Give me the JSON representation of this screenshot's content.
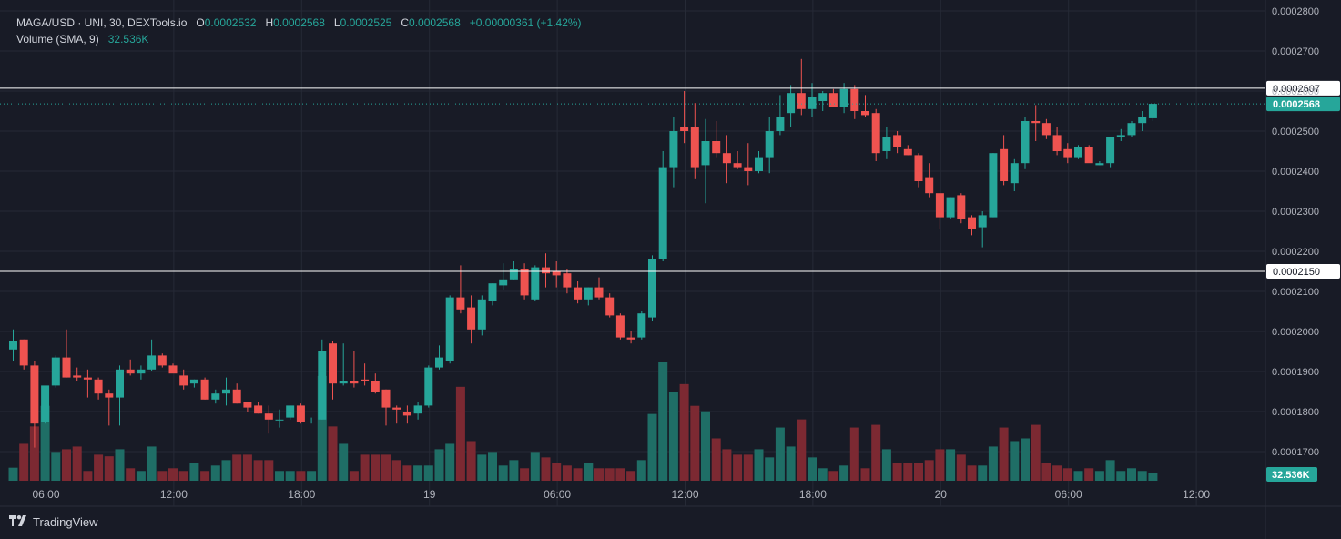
{
  "legend": {
    "symbol": "MAGA/USD · UNI, 30, DEXTools.io",
    "o_label": "O",
    "o_value": "0.0002532",
    "h_label": "H",
    "h_value": "0.0002568",
    "l_label": "L",
    "l_value": "0.0002525",
    "c_label": "C",
    "c_value": "0.0002568",
    "change": "+0.00000361 (+1.42%)",
    "volume_label": "Volume (SMA, 9)",
    "volume_value": "32.536K"
  },
  "footer": {
    "brand": "TradingView",
    "logo_icon": "tradingview-logo-icon"
  },
  "colors": {
    "background": "#181b26",
    "grid": "#262a36",
    "up": "#26a69a",
    "down": "#ef5350",
    "up_volume": "#1f6e66",
    "down_volume": "#7c2932",
    "text": "#b2b5be",
    "line": "#ffffff"
  },
  "chart_data": {
    "type": "candlestick",
    "interval": "30",
    "ylim": [
      0.0001645,
      0.00028
    ],
    "y_ticks": [
      "0.0002800",
      "0.0002700",
      "0.0002600",
      "0.0002500",
      "0.0002400",
      "0.0002300",
      "0.0002200",
      "0.0002100",
      "0.0002000",
      "0.0001900",
      "0.0001800",
      "0.0001700"
    ],
    "y_tick_values": [
      0.00028,
      0.00027,
      0.00026,
      0.00025,
      0.00024,
      0.00023,
      0.00022,
      0.00021,
      0.0002,
      0.00019,
      0.00018,
      0.00017
    ],
    "x_ticks": [
      {
        "label": "06:00",
        "bar": 2
      },
      {
        "label": "12:00",
        "bar": 14
      },
      {
        "label": "18:00",
        "bar": 26
      },
      {
        "label": "19",
        "bar": 38
      },
      {
        "label": "06:00",
        "bar": 50
      },
      {
        "label": "12:00",
        "bar": 62
      },
      {
        "label": "18:00",
        "bar": 74
      },
      {
        "label": "20",
        "bar": 86
      },
      {
        "label": "06:00",
        "bar": 98
      },
      {
        "label": "12:00",
        "bar": 110
      }
    ],
    "horizontal_lines": [
      {
        "value": 0.0002607,
        "label": "0.0002607"
      },
      {
        "value": 0.000215,
        "label": "0.0002150"
      }
    ],
    "last_price": {
      "value": 0.0002568,
      "label": "0.0002568"
    },
    "volume_label": "32.536K",
    "volume_max_k": 218,
    "candles": [
      {
        "o": 0.0001955,
        "h": 0.0002005,
        "l": 0.0001925,
        "c": 0.0001975,
        "v": 24
      },
      {
        "o": 0.000198,
        "h": 0.000198,
        "l": 0.0001905,
        "c": 0.0001915,
        "v": 68
      },
      {
        "o": 0.0001915,
        "h": 0.0001925,
        "l": 0.000171,
        "c": 0.000177,
        "v": 100
      },
      {
        "o": 0.0001775,
        "h": 0.000186,
        "l": 0.000177,
        "c": 0.0001865,
        "v": 138
      },
      {
        "o": 0.0001865,
        "h": 0.000194,
        "l": 0.000186,
        "c": 0.0001935,
        "v": 53
      },
      {
        "o": 0.0001935,
        "h": 0.0002005,
        "l": 0.0001885,
        "c": 0.0001885,
        "v": 58
      },
      {
        "o": 0.000189,
        "h": 0.000191,
        "l": 0.0001875,
        "c": 0.0001885,
        "v": 63
      },
      {
        "o": 0.0001885,
        "h": 0.0001905,
        "l": 0.0001835,
        "c": 0.000188,
        "v": 18
      },
      {
        "o": 0.000188,
        "h": 0.0001885,
        "l": 0.000183,
        "c": 0.0001845,
        "v": 48
      },
      {
        "o": 0.0001845,
        "h": 0.0001855,
        "l": 0.0001765,
        "c": 0.0001835,
        "v": 45
      },
      {
        "o": 0.0001835,
        "h": 0.0001915,
        "l": 0.0001765,
        "c": 0.0001905,
        "v": 58
      },
      {
        "o": 0.0001905,
        "h": 0.000193,
        "l": 0.000189,
        "c": 0.0001895,
        "v": 23
      },
      {
        "o": 0.0001895,
        "h": 0.0001915,
        "l": 0.000188,
        "c": 0.0001905,
        "v": 18
      },
      {
        "o": 0.0001905,
        "h": 0.000198,
        "l": 0.00019,
        "c": 0.000194,
        "v": 63
      },
      {
        "o": 0.000194,
        "h": 0.0001945,
        "l": 0.000191,
        "c": 0.0001915,
        "v": 18
      },
      {
        "o": 0.0001915,
        "h": 0.000192,
        "l": 0.00019,
        "c": 0.0001895,
        "v": 23
      },
      {
        "o": 0.000189,
        "h": 0.0001905,
        "l": 0.0001855,
        "c": 0.0001865,
        "v": 18
      },
      {
        "o": 0.000187,
        "h": 0.000188,
        "l": 0.000186,
        "c": 0.000188,
        "v": 33
      },
      {
        "o": 0.000188,
        "h": 0.0001885,
        "l": 0.000183,
        "c": 0.000183,
        "v": 18
      },
      {
        "o": 0.000183,
        "h": 0.0001855,
        "l": 0.000182,
        "c": 0.0001845,
        "v": 28
      },
      {
        "o": 0.0001845,
        "h": 0.0001885,
        "l": 0.0001815,
        "c": 0.0001855,
        "v": 38
      },
      {
        "o": 0.0001855,
        "h": 0.000187,
        "l": 0.000182,
        "c": 0.000182,
        "v": 48
      },
      {
        "o": 0.0001825,
        "h": 0.0001825,
        "l": 0.00018,
        "c": 0.000181,
        "v": 48
      },
      {
        "o": 0.0001815,
        "h": 0.0001825,
        "l": 0.0001795,
        "c": 0.0001795,
        "v": 38
      },
      {
        "o": 0.0001795,
        "h": 0.0001815,
        "l": 0.0001745,
        "c": 0.000178,
        "v": 38
      },
      {
        "o": 0.000178,
        "h": 0.0001805,
        "l": 0.000176,
        "c": 0.000178,
        "v": 18
      },
      {
        "o": 0.0001785,
        "h": 0.0001815,
        "l": 0.000178,
        "c": 0.0001815,
        "v": 18
      },
      {
        "o": 0.0001815,
        "h": 0.000182,
        "l": 0.000177,
        "c": 0.0001775,
        "v": 18
      },
      {
        "o": 0.0001775,
        "h": 0.0001785,
        "l": 0.000177,
        "c": 0.0001775,
        "v": 18
      },
      {
        "o": 0.000178,
        "h": 0.000198,
        "l": 0.000178,
        "c": 0.000195,
        "v": 193
      },
      {
        "o": 0.000197,
        "h": 0.0001975,
        "l": 0.000183,
        "c": 0.000187,
        "v": 100
      },
      {
        "o": 0.000187,
        "h": 0.000197,
        "l": 0.0001865,
        "c": 0.0001875,
        "v": 68
      },
      {
        "o": 0.0001875,
        "h": 0.000195,
        "l": 0.000186,
        "c": 0.000187,
        "v": 18
      },
      {
        "o": 0.000188,
        "h": 0.000192,
        "l": 0.0001865,
        "c": 0.0001875,
        "v": 48
      },
      {
        "o": 0.0001875,
        "h": 0.0001895,
        "l": 0.0001845,
        "c": 0.000185,
        "v": 48
      },
      {
        "o": 0.0001855,
        "h": 0.0001855,
        "l": 0.0001765,
        "c": 0.000181,
        "v": 48
      },
      {
        "o": 0.000181,
        "h": 0.0001815,
        "l": 0.000177,
        "c": 0.0001805,
        "v": 38
      },
      {
        "o": 0.00018,
        "h": 0.0001815,
        "l": 0.000177,
        "c": 0.000179,
        "v": 28
      },
      {
        "o": 0.0001795,
        "h": 0.0001825,
        "l": 0.000178,
        "c": 0.0001815,
        "v": 28
      },
      {
        "o": 0.0001815,
        "h": 0.0001915,
        "l": 0.000181,
        "c": 0.000191,
        "v": 28
      },
      {
        "o": 0.000191,
        "h": 0.0001965,
        "l": 0.0001905,
        "c": 0.0001935,
        "v": 58
      },
      {
        "o": 0.0001925,
        "h": 0.000209,
        "l": 0.000192,
        "c": 0.0002085,
        "v": 68
      },
      {
        "o": 0.0002085,
        "h": 0.0002165,
        "l": 0.0002045,
        "c": 0.0002055,
        "v": 173
      },
      {
        "o": 0.000206,
        "h": 0.000209,
        "l": 0.000197,
        "c": 0.0002005,
        "v": 73
      },
      {
        "o": 0.0002005,
        "h": 0.000209,
        "l": 0.000199,
        "c": 0.000208,
        "v": 48
      },
      {
        "o": 0.0002075,
        "h": 0.000212,
        "l": 0.0002065,
        "c": 0.000212,
        "v": 53
      },
      {
        "o": 0.0002115,
        "h": 0.000217,
        "l": 0.0002105,
        "c": 0.000213,
        "v": 28
      },
      {
        "o": 0.000213,
        "h": 0.0002175,
        "l": 0.000213,
        "c": 0.0002155,
        "v": 38
      },
      {
        "o": 0.0002155,
        "h": 0.000217,
        "l": 0.000208,
        "c": 0.000209,
        "v": 23
      },
      {
        "o": 0.000208,
        "h": 0.0002165,
        "l": 0.0002075,
        "c": 0.000216,
        "v": 53
      },
      {
        "o": 0.000216,
        "h": 0.0002195,
        "l": 0.000211,
        "c": 0.0002145,
        "v": 43
      },
      {
        "o": 0.000215,
        "h": 0.0002175,
        "l": 0.000211,
        "c": 0.000214,
        "v": 33
      },
      {
        "o": 0.0002145,
        "h": 0.0002155,
        "l": 0.0002095,
        "c": 0.000211,
        "v": 28
      },
      {
        "o": 0.000211,
        "h": 0.0002125,
        "l": 0.000207,
        "c": 0.000208,
        "v": 23
      },
      {
        "o": 0.000208,
        "h": 0.000211,
        "l": 0.0002065,
        "c": 0.000211,
        "v": 33
      },
      {
        "o": 0.000211,
        "h": 0.0002135,
        "l": 0.000208,
        "c": 0.0002085,
        "v": 23
      },
      {
        "o": 0.0002085,
        "h": 0.0002095,
        "l": 0.0002035,
        "c": 0.000204,
        "v": 23
      },
      {
        "o": 0.000204,
        "h": 0.0002045,
        "l": 0.000198,
        "c": 0.0001985,
        "v": 23
      },
      {
        "o": 0.0001985,
        "h": 0.0002,
        "l": 0.000197,
        "c": 0.000198,
        "v": 18
      },
      {
        "o": 0.0001985,
        "h": 0.000205,
        "l": 0.000198,
        "c": 0.0002045,
        "v": 38
      },
      {
        "o": 0.0002035,
        "h": 0.000219,
        "l": 0.0002025,
        "c": 0.000218,
        "v": 123
      },
      {
        "o": 0.000218,
        "h": 0.000245,
        "l": 0.0002175,
        "c": 0.000241,
        "v": 218
      },
      {
        "o": 0.000241,
        "h": 0.0002535,
        "l": 0.000236,
        "c": 0.00025,
        "v": 163
      },
      {
        "o": 0.000251,
        "h": 0.00026,
        "l": 0.000247,
        "c": 0.00025,
        "v": 178
      },
      {
        "o": 0.000251,
        "h": 0.000257,
        "l": 0.000238,
        "c": 0.000241,
        "v": 138
      },
      {
        "o": 0.0002415,
        "h": 0.000253,
        "l": 0.000232,
        "c": 0.0002475,
        "v": 128
      },
      {
        "o": 0.0002475,
        "h": 0.0002525,
        "l": 0.0002435,
        "c": 0.0002445,
        "v": 78
      },
      {
        "o": 0.0002445,
        "h": 0.000249,
        "l": 0.000237,
        "c": 0.000242,
        "v": 58
      },
      {
        "o": 0.000242,
        "h": 0.000245,
        "l": 0.0002405,
        "c": 0.000241,
        "v": 48
      },
      {
        "o": 0.000241,
        "h": 0.000247,
        "l": 0.0002365,
        "c": 0.00024,
        "v": 48
      },
      {
        "o": 0.00024,
        "h": 0.000245,
        "l": 0.0002395,
        "c": 0.0002435,
        "v": 58
      },
      {
        "o": 0.0002435,
        "h": 0.0002535,
        "l": 0.0002395,
        "c": 0.00025,
        "v": 43
      },
      {
        "o": 0.00025,
        "h": 0.000259,
        "l": 0.000249,
        "c": 0.0002535,
        "v": 98
      },
      {
        "o": 0.0002545,
        "h": 0.0002615,
        "l": 0.000251,
        "c": 0.0002595,
        "v": 63
      },
      {
        "o": 0.0002595,
        "h": 0.000268,
        "l": 0.000254,
        "c": 0.0002555,
        "v": 113
      },
      {
        "o": 0.0002555,
        "h": 0.000262,
        "l": 0.0002535,
        "c": 0.0002585,
        "v": 43
      },
      {
        "o": 0.0002575,
        "h": 0.00026,
        "l": 0.000255,
        "c": 0.0002595,
        "v": 23
      },
      {
        "o": 0.0002595,
        "h": 0.0002605,
        "l": 0.000256,
        "c": 0.000256,
        "v": 18
      },
      {
        "o": 0.000256,
        "h": 0.000262,
        "l": 0.0002545,
        "c": 0.0002605,
        "v": 28
      },
      {
        "o": 0.0002605,
        "h": 0.0002615,
        "l": 0.000253,
        "c": 0.000255,
        "v": 98
      },
      {
        "o": 0.000255,
        "h": 0.000259,
        "l": 0.0002535,
        "c": 0.000254,
        "v": 23
      },
      {
        "o": 0.0002545,
        "h": 0.0002555,
        "l": 0.0002425,
        "c": 0.0002445,
        "v": 103
      },
      {
        "o": 0.000245,
        "h": 0.000251,
        "l": 0.000243,
        "c": 0.0002485,
        "v": 58
      },
      {
        "o": 0.000249,
        "h": 0.00025,
        "l": 0.0002445,
        "c": 0.000246,
        "v": 33
      },
      {
        "o": 0.0002455,
        "h": 0.0002465,
        "l": 0.000244,
        "c": 0.000244,
        "v": 33
      },
      {
        "o": 0.000244,
        "h": 0.0002445,
        "l": 0.000236,
        "c": 0.0002375,
        "v": 33
      },
      {
        "o": 0.0002385,
        "h": 0.000242,
        "l": 0.0002335,
        "c": 0.0002345,
        "v": 38
      },
      {
        "o": 0.0002345,
        "h": 0.0002345,
        "l": 0.0002255,
        "c": 0.0002285,
        "v": 58
      },
      {
        "o": 0.0002285,
        "h": 0.0002335,
        "l": 0.000228,
        "c": 0.0002335,
        "v": 58
      },
      {
        "o": 0.000234,
        "h": 0.0002345,
        "l": 0.000227,
        "c": 0.000228,
        "v": 48
      },
      {
        "o": 0.0002285,
        "h": 0.000229,
        "l": 0.000224,
        "c": 0.0002255,
        "v": 28
      },
      {
        "o": 0.000226,
        "h": 0.00023,
        "l": 0.000221,
        "c": 0.000229,
        "v": 28
      },
      {
        "o": 0.0002285,
        "h": 0.0002445,
        "l": 0.0002285,
        "c": 0.0002445,
        "v": 63
      },
      {
        "o": 0.0002455,
        "h": 0.000249,
        "l": 0.0002365,
        "c": 0.0002375,
        "v": 98
      },
      {
        "o": 0.000237,
        "h": 0.000243,
        "l": 0.000235,
        "c": 0.000242,
        "v": 73
      },
      {
        "o": 0.000242,
        "h": 0.0002535,
        "l": 0.0002405,
        "c": 0.0002525,
        "v": 78
      },
      {
        "o": 0.0002525,
        "h": 0.0002565,
        "l": 0.0002475,
        "c": 0.000252,
        "v": 103
      },
      {
        "o": 0.000252,
        "h": 0.000253,
        "l": 0.000248,
        "c": 0.000249,
        "v": 33
      },
      {
        "o": 0.000249,
        "h": 0.000251,
        "l": 0.000244,
        "c": 0.000245,
        "v": 28
      },
      {
        "o": 0.0002455,
        "h": 0.000247,
        "l": 0.000242,
        "c": 0.0002435,
        "v": 23
      },
      {
        "o": 0.0002435,
        "h": 0.0002465,
        "l": 0.000243,
        "c": 0.000246,
        "v": 18
      },
      {
        "o": 0.000246,
        "h": 0.0002465,
        "l": 0.0002425,
        "c": 0.000242,
        "v": 23
      },
      {
        "o": 0.0002415,
        "h": 0.0002425,
        "l": 0.0002415,
        "c": 0.000242,
        "v": 18
      },
      {
        "o": 0.000242,
        "h": 0.0002485,
        "l": 0.000241,
        "c": 0.0002485,
        "v": 38
      },
      {
        "o": 0.0002485,
        "h": 0.0002505,
        "l": 0.0002475,
        "c": 0.000249,
        "v": 18
      },
      {
        "o": 0.000249,
        "h": 0.0002525,
        "l": 0.0002485,
        "c": 0.000252,
        "v": 23
      },
      {
        "o": 0.000252,
        "h": 0.000255,
        "l": 0.00025,
        "c": 0.0002535,
        "v": 18
      },
      {
        "o": 0.0002532,
        "h": 0.0002568,
        "l": 0.0002525,
        "c": 0.0002568,
        "v": 14
      }
    ]
  }
}
